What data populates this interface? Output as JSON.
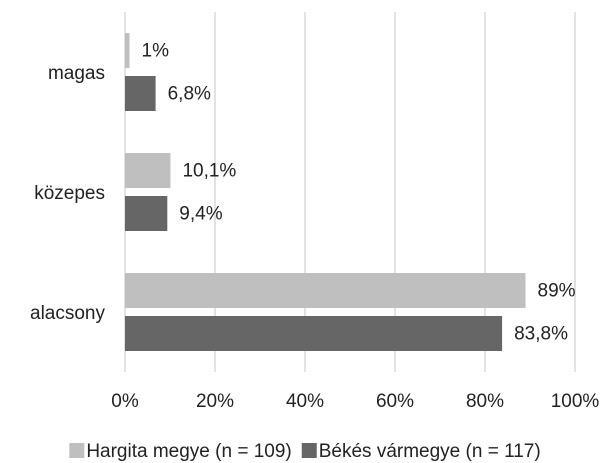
{
  "chart_data": {
    "type": "hbar",
    "categories": [
      "magas",
      "közepes",
      "alacsony"
    ],
    "series": [
      {
        "name": "Hargita megye (n = 109)",
        "color": "#bfbfbf",
        "values": [
          1,
          10.1,
          89
        ],
        "value_labels": [
          "1%",
          "10,1%",
          "89%"
        ]
      },
      {
        "name": "Békés vármegye (n = 117)",
        "color": "#666666",
        "values": [
          6.8,
          9.4,
          83.8
        ],
        "value_labels": [
          "6,8%",
          "9,4%",
          "83,8%"
        ]
      }
    ],
    "xlim": [
      0,
      100
    ],
    "xticks": [
      {
        "value": 0,
        "label": "0%"
      },
      {
        "value": 20,
        "label": "20%"
      },
      {
        "value": 40,
        "label": "40%"
      },
      {
        "value": 60,
        "label": "60%"
      },
      {
        "value": 80,
        "label": "80%"
      },
      {
        "value": 100,
        "label": "100%"
      }
    ],
    "grid": true,
    "legend": "bottom"
  }
}
